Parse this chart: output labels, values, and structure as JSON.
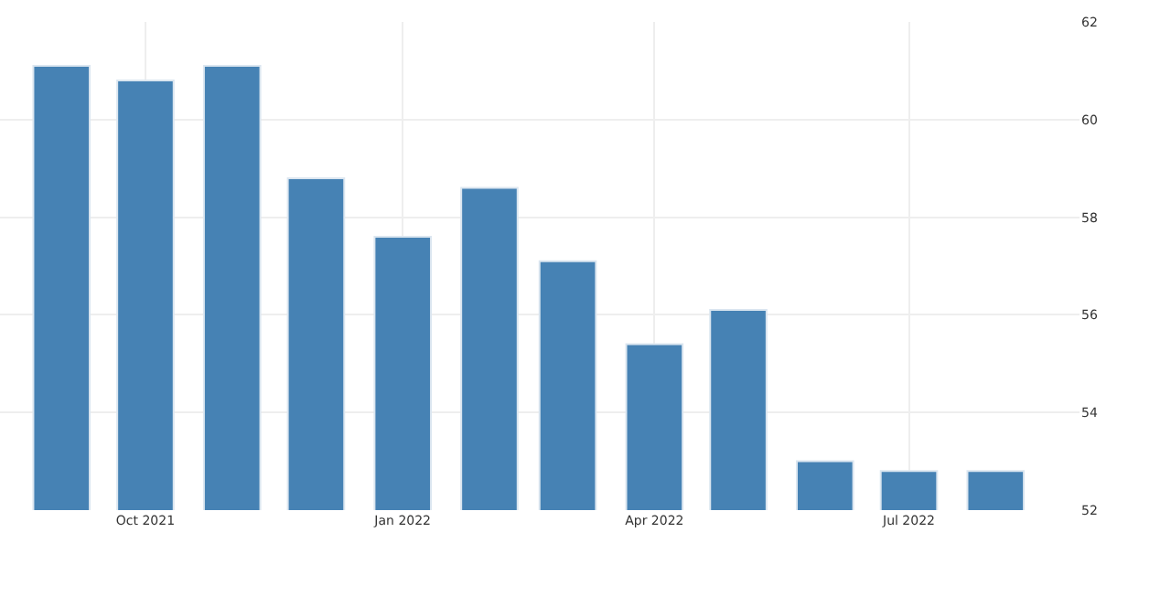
{
  "chart_data": {
    "type": "bar",
    "x": [
      "2021-09",
      "2021-10",
      "2021-11",
      "2021-12",
      "2022-01",
      "2022-02",
      "2022-03",
      "2022-04",
      "2022-05",
      "2022-06",
      "2022-07",
      "2022-08"
    ],
    "values": [
      61.1,
      60.8,
      61.1,
      58.8,
      57.6,
      58.6,
      57.1,
      55.4,
      56.1,
      53.0,
      52.8,
      52.8
    ],
    "color": "#4682b4",
    "xlim": [
      "2021-08-10",
      "2022-08-31"
    ],
    "xticks": [
      {
        "value": "2021-10",
        "label": "Oct 2021"
      },
      {
        "value": "2022-01",
        "label": "Jan 2022"
      },
      {
        "value": "2022-04",
        "label": "Apr 2022"
      },
      {
        "value": "2022-07",
        "label": "Jul 2022"
      }
    ],
    "ylim": [
      52,
      62
    ],
    "yticks": [
      52,
      54,
      56,
      58,
      60,
      62
    ],
    "grid": true
  }
}
